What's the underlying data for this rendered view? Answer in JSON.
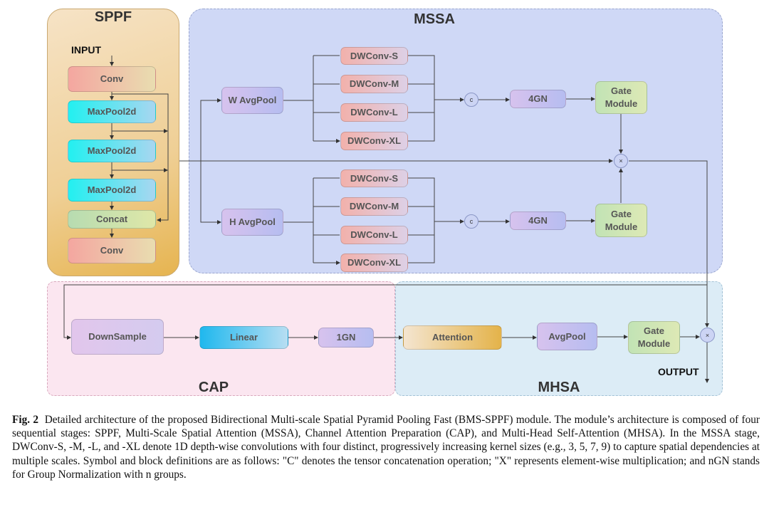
{
  "stages": {
    "sppf": "SPPF",
    "mssa": "MSSA",
    "cap": "CAP",
    "mhsa": "MHSA"
  },
  "labels": {
    "input": "INPUT",
    "output": "OUTPUT"
  },
  "sppf": {
    "conv1": "Conv",
    "maxpool1": "MaxPool2d",
    "maxpool2": "MaxPool2d",
    "maxpool3": "MaxPool2d",
    "concat": "Concat",
    "conv2": "Conv"
  },
  "mssa": {
    "w_avgpool": "W AvgPool",
    "h_avgpool": "H AvgPool",
    "upper_dwconv": [
      "DWConv-S",
      "DWConv-M",
      "DWConv-L",
      "DWConv-XL"
    ],
    "lower_dwconv": [
      "DWConv-S",
      "DWConv-M",
      "DWConv-L",
      "DWConv-XL"
    ],
    "concat_symbol": "c",
    "gn": "4GN",
    "gate": "Gate Module",
    "multiply_symbol": "×"
  },
  "cap": {
    "downsample": "DownSample",
    "linear": "Linear",
    "gn": "1GN"
  },
  "mhsa": {
    "attention": "Attention",
    "avgpool": "AvgPool",
    "gate": "Gate Module",
    "multiply_symbol": "×"
  },
  "caption": {
    "label": "Fig. 2",
    "text": "Detailed architecture of the proposed Bidirectional Multi-scale Spatial Pyramid Pooling Fast (BMS-SPPF) module. The module’s architecture is composed of four sequential stages: SPPF, Multi-Scale Spatial Attention (MSSA), Channel Attention Preparation (CAP), and Multi-Head Self-Attention (MHSA). In the MSSA stage, DWConv-S, -M, -L, and -XL denote 1D depth-wise convolutions with four distinct, progressively increasing kernel sizes (e.g., 3, 5, 7, 9) to capture spatial dependencies at multiple scales. Symbol and block definitions are as follows: \"C\" denotes the tensor concatenation operation; \"X\" represents element-wise multiplication; and nGN stands for Group Normalization with n groups."
  }
}
